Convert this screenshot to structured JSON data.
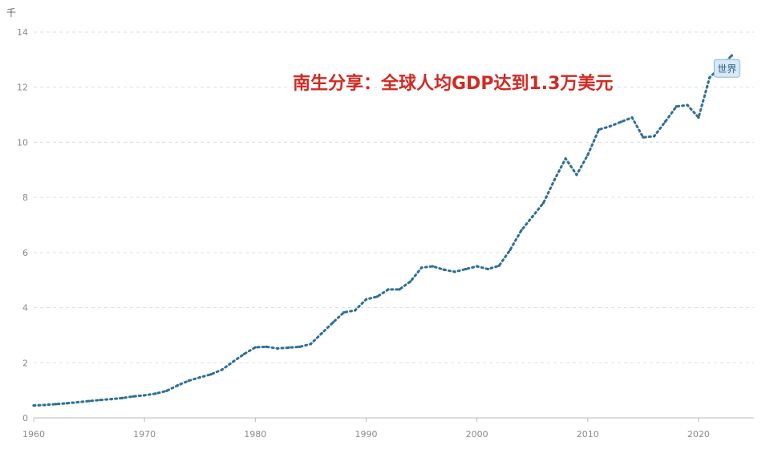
{
  "chart_data": {
    "type": "line",
    "unit_label": "千",
    "annotation": "南生分享：全球人均GDP达到1.3万美元",
    "series": [
      {
        "name": "世界",
        "color": "#2f6f96",
        "x": [
          1960,
          1961,
          1962,
          1963,
          1964,
          1965,
          1966,
          1967,
          1968,
          1969,
          1970,
          1971,
          1972,
          1973,
          1974,
          1975,
          1976,
          1977,
          1978,
          1979,
          1980,
          1981,
          1982,
          1983,
          1984,
          1985,
          1986,
          1987,
          1988,
          1989,
          1990,
          1991,
          1992,
          1993,
          1994,
          1995,
          1996,
          1997,
          1998,
          1999,
          2000,
          2001,
          2002,
          2003,
          2004,
          2005,
          2006,
          2007,
          2008,
          2009,
          2010,
          2011,
          2012,
          2013,
          2014,
          2015,
          2016,
          2017,
          2018,
          2019,
          2020,
          2021,
          2022,
          2023
        ],
        "y": [
          0.45,
          0.47,
          0.5,
          0.53,
          0.57,
          0.61,
          0.65,
          0.68,
          0.72,
          0.78,
          0.82,
          0.88,
          0.98,
          1.18,
          1.35,
          1.47,
          1.58,
          1.75,
          2.04,
          2.32,
          2.56,
          2.58,
          2.52,
          2.55,
          2.58,
          2.68,
          3.07,
          3.46,
          3.83,
          3.9,
          4.3,
          4.4,
          4.66,
          4.66,
          4.95,
          5.45,
          5.5,
          5.38,
          5.3,
          5.4,
          5.5,
          5.4,
          5.52,
          6.1,
          6.8,
          7.3,
          7.8,
          8.64,
          9.41,
          8.82,
          9.54,
          10.46,
          10.58,
          10.74,
          10.9,
          10.18,
          10.22,
          10.75,
          11.3,
          11.35,
          10.9,
          12.35,
          12.75,
          13.15
        ]
      }
    ],
    "xlabel": "",
    "ylabel": "",
    "x_ticks": [
      "1960",
      "1970",
      "1980",
      "1990",
      "2000",
      "2010",
      "2020"
    ],
    "y_ticks": [
      "0",
      "2",
      "4",
      "6",
      "8",
      "10",
      "12",
      "14"
    ],
    "xlim": [
      1960,
      2025
    ],
    "ylim": [
      0,
      14
    ],
    "grid": true,
    "line_style": "dotted",
    "end_label": "世界"
  }
}
